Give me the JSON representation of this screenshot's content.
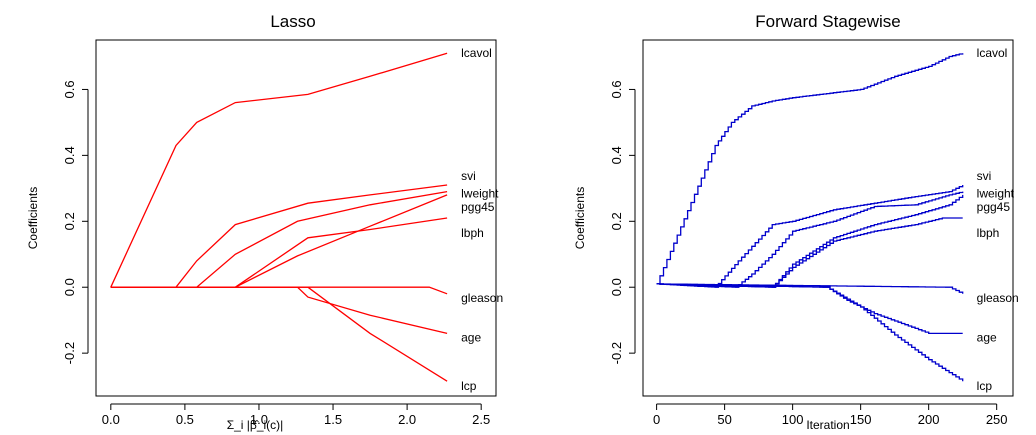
{
  "chart_data": [
    {
      "type": "line",
      "title": "Lasso",
      "xlabel": "Σ_i |β̂_i(c)|",
      "ylabel": "Coefficients",
      "xlim": [
        -0.1,
        2.6
      ],
      "ylim": [
        -0.33,
        0.75
      ],
      "xticks": [
        "0.0",
        "0.5",
        "1.0",
        "1.5",
        "2.0",
        "2.5"
      ],
      "xtick_values": [
        0,
        0.5,
        1.0,
        1.5,
        2.0,
        2.5
      ],
      "yticks": [
        "-0.2",
        "0.0",
        "0.2",
        "0.4",
        "0.6"
      ],
      "ytick_values": [
        -0.2,
        0,
        0.2,
        0.4,
        0.6
      ],
      "grid": false,
      "color": "#ff0000",
      "series": [
        {
          "name": "lcavol",
          "x": [
            0,
            0.44,
            0.58,
            0.84,
            1.33,
            1.75,
            2.27
          ],
          "y": [
            0,
            0.43,
            0.5,
            0.56,
            0.585,
            0.64,
            0.71
          ]
        },
        {
          "name": "svi",
          "x": [
            0,
            0.44,
            0.58,
            0.84,
            1.33,
            1.75,
            2.27
          ],
          "y": [
            0,
            0,
            0.08,
            0.19,
            0.255,
            0.28,
            0.31
          ]
        },
        {
          "name": "lweight",
          "x": [
            0,
            0.58,
            0.84,
            1.26,
            1.75,
            2.27
          ],
          "y": [
            0,
            0,
            0.1,
            0.2,
            0.25,
            0.29
          ]
        },
        {
          "name": "pgg45",
          "x": [
            0,
            0.84,
            1.26,
            1.75,
            2.27
          ],
          "y": [
            0,
            0,
            0.095,
            0.185,
            0.28
          ]
        },
        {
          "name": "lbph",
          "x": [
            0,
            0.84,
            1.33,
            1.75,
            2.27
          ],
          "y": [
            0,
            0,
            0.15,
            0.175,
            0.21
          ]
        },
        {
          "name": "gleason",
          "x": [
            0,
            2.15,
            2.27
          ],
          "y": [
            0,
            0,
            -0.02
          ]
        },
        {
          "name": "age",
          "x": [
            0,
            1.26,
            1.33,
            1.75,
            2.27
          ],
          "y": [
            0,
            0,
            -0.03,
            -0.085,
            -0.14
          ]
        },
        {
          "name": "lcp",
          "x": [
            0,
            1.33,
            1.75,
            2.27
          ],
          "y": [
            0,
            0,
            -0.14,
            -0.285
          ]
        }
      ]
    },
    {
      "type": "line",
      "title": "Forward Stagewise",
      "xlabel": "Iteration",
      "ylabel": "Coefficients",
      "xlim": [
        -10,
        262
      ],
      "ylim": [
        -0.33,
        0.75
      ],
      "xticks": [
        "0",
        "50",
        "100",
        "150",
        "200",
        "250"
      ],
      "xtick_values": [
        0,
        50,
        100,
        150,
        200,
        250
      ],
      "yticks": [
        "-0.2",
        "0.0",
        "0.2",
        "0.4",
        "0.6"
      ],
      "ytick_values": [
        -0.2,
        0,
        0.2,
        0.4,
        0.6
      ],
      "grid": false,
      "color": "#0000cc",
      "series": [
        {
          "name": "lcavol",
          "x": [
            0,
            43,
            55,
            70,
            85,
            100,
            130,
            150,
            175,
            200,
            215,
            225
          ],
          "y": [
            0.01,
            0.43,
            0.5,
            0.55,
            0.565,
            0.575,
            0.59,
            0.6,
            0.64,
            0.67,
            0.7,
            0.71
          ]
        },
        {
          "name": "svi",
          "x": [
            0,
            43,
            60,
            85,
            100,
            130,
            160,
            190,
            215,
            225
          ],
          "y": [
            0.01,
            0,
            0.08,
            0.19,
            0.2,
            0.235,
            0.255,
            0.275,
            0.29,
            0.31
          ]
        },
        {
          "name": "lweight",
          "x": [
            0,
            58,
            70,
            85,
            100,
            130,
            160,
            190,
            215,
            225
          ],
          "y": [
            0.01,
            0,
            0.04,
            0.1,
            0.17,
            0.2,
            0.245,
            0.25,
            0.28,
            0.29
          ]
        },
        {
          "name": "pgg45",
          "x": [
            0,
            85,
            100,
            130,
            160,
            190,
            215,
            225
          ],
          "y": [
            0.01,
            0,
            0.07,
            0.15,
            0.19,
            0.22,
            0.25,
            0.28
          ]
        },
        {
          "name": "lbph",
          "x": [
            0,
            85,
            100,
            130,
            160,
            190,
            210,
            225
          ],
          "y": [
            0.01,
            0,
            0.06,
            0.14,
            0.17,
            0.19,
            0.21,
            0.21
          ]
        },
        {
          "name": "gleason",
          "x": [
            0,
            215,
            225
          ],
          "y": [
            0.01,
            0,
            -0.02
          ]
        },
        {
          "name": "age",
          "x": [
            0,
            125,
            140,
            160,
            180,
            200,
            225
          ],
          "y": [
            0.01,
            0,
            -0.04,
            -0.08,
            -0.11,
            -0.14,
            -0.14
          ]
        },
        {
          "name": "lcp",
          "x": [
            0,
            125,
            150,
            175,
            200,
            225
          ],
          "y": [
            0.01,
            0,
            -0.06,
            -0.145,
            -0.22,
            -0.285
          ]
        }
      ]
    }
  ]
}
